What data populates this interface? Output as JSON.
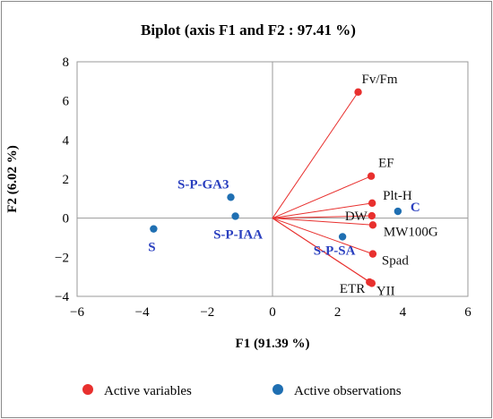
{
  "chart_data": {
    "type": "scatter",
    "title": "Biplot (axis F1 and F2 : 97.41 %)",
    "xlabel": "F1 (91.39 %)",
    "ylabel": "F2 (6.02 %)",
    "xlim": [
      -6,
      6
    ],
    "ylim": [
      -4,
      8
    ],
    "xticks": [
      -6,
      -4,
      -2,
      0,
      2,
      4,
      6
    ],
    "yticks": [
      -4,
      -2,
      0,
      2,
      4,
      6,
      8
    ],
    "grid": false,
    "legend_position": "bottom",
    "legend": [
      {
        "label": "Active variables",
        "color": "#e8302e"
      },
      {
        "label": "Active observations",
        "color": "#1f6fb2"
      }
    ],
    "series": [
      {
        "name": "Active variables",
        "color": "#e8302e",
        "vectors_from_origin": true,
        "points": [
          {
            "label": "Fv/Fm",
            "x": 2.63,
            "y": 6.45
          },
          {
            "label": "EF",
            "x": 3.03,
            "y": 2.15
          },
          {
            "label": "Plt-H",
            "x": 3.06,
            "y": 0.77
          },
          {
            "label": "DW",
            "x": 3.05,
            "y": 0.12
          },
          {
            "label": "MW100G",
            "x": 3.08,
            "y": -0.35
          },
          {
            "label": "Spad",
            "x": 3.08,
            "y": -1.83
          },
          {
            "label": "ETR",
            "x": 2.98,
            "y": -3.27
          },
          {
            "label": "YII",
            "x": 3.05,
            "y": -3.33
          }
        ]
      },
      {
        "name": "Active observations",
        "color": "#1f6fb2",
        "points": [
          {
            "label": "S",
            "x": -3.65,
            "y": -0.55
          },
          {
            "label": "S-P-GA3",
            "x": -1.28,
            "y": 1.07
          },
          {
            "label": "S-P-IAA",
            "x": -1.14,
            "y": 0.1
          },
          {
            "label": "S-P-SA",
            "x": 2.15,
            "y": -0.95
          },
          {
            "label": "C",
            "x": 3.85,
            "y": 0.35
          }
        ]
      }
    ]
  }
}
